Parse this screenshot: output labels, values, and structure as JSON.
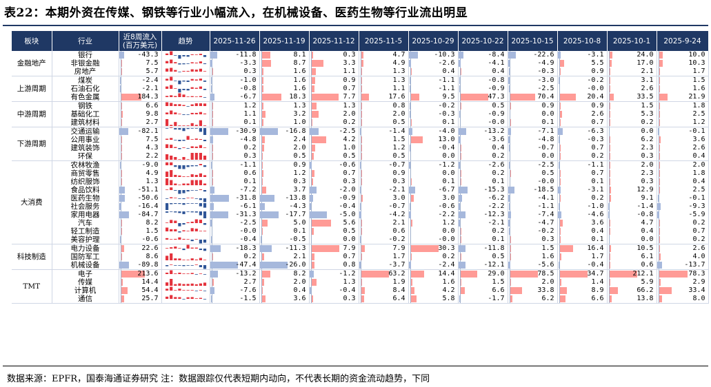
{
  "title": "表22：本期外资在传媒、钢铁等行业小幅流入，在机械设备、医药生物等行业流出明显",
  "headers": {
    "sector": "板块",
    "industry": "行业",
    "cumulative_line1": "近8周流入",
    "cumulative_line2": "(百万美元)",
    "trend": "趋势",
    "weeks": [
      "2025-11-26",
      "2025-11-19",
      "2025-11-12",
      "2025-11-5",
      "2025-10-29",
      "2025-10-22",
      "2025-10-15",
      "2025-10-8",
      "2025-10-1",
      "2025-9-24"
    ]
  },
  "colors": {
    "header_bg": "#1f3864",
    "positive": "#ff9b96",
    "negative": "#a6b8dc",
    "trend_pos": "#e4323c",
    "trend_neg": "#2f5597"
  },
  "groups": [
    {
      "name": "金融地产",
      "rows": [
        {
          "industry": "银行",
          "cum": "-43.3",
          "weeks": [
            "-11.8",
            "8.1",
            "0.3",
            "4.7",
            "-10.3",
            "-8.4",
            "-22.6",
            "-3.1",
            "24.0",
            "10.0"
          ]
        },
        {
          "industry": "非银金融",
          "cum": "7.5",
          "weeks": [
            "-3.3",
            "8.7",
            "3.3",
            "4.9",
            "-2.6",
            "-4.1",
            "-4.9",
            "5.5",
            "17.0",
            "10.3"
          ]
        },
        {
          "industry": "房地产",
          "cum": "5.7",
          "weeks": [
            "0.3",
            "1.6",
            "1.1",
            "1.3",
            "0.4",
            "0.4",
            "-0.3",
            "0.9",
            "2.1",
            "1.7"
          ]
        }
      ]
    },
    {
      "name": "上游周期",
      "rows": [
        {
          "industry": "煤炭",
          "cum": "-2.4",
          "weeks": [
            "-1.0",
            "1.6",
            "0.9",
            "1.3",
            "-1.1",
            "-0.8",
            "-3.0",
            "-0.2",
            "3.1",
            "1.5"
          ]
        },
        {
          "industry": "石油石化",
          "cum": "-2.1",
          "weeks": [
            "-0.8",
            "1.6",
            "0.7",
            "1.1",
            "-1.1",
            "-0.9",
            "-2.5",
            "-0.0",
            "2.6",
            "1.6"
          ]
        },
        {
          "industry": "有色金属",
          "cum": "184.3",
          "weeks": [
            "-6.7",
            "18.3",
            "7.7",
            "17.6",
            "9.5",
            "47.3",
            "70.4",
            "20.4",
            "33.5",
            "21.9"
          ]
        }
      ]
    },
    {
      "name": "中游周期",
      "rows": [
        {
          "industry": "钢铁",
          "cum": "6.6",
          "weeks": [
            "1.2",
            "1.3",
            "1.3",
            "0.8",
            "-0.2",
            "0.5",
            "0.9",
            "0.9",
            "1.5",
            "1.8"
          ]
        },
        {
          "industry": "基础化工",
          "cum": "9.8",
          "weeks": [
            "1.1",
            "3.2",
            "2.0",
            "2.0",
            "-0.3",
            "-0.9",
            "0.0",
            "2.6",
            "5.3",
            "2.5"
          ]
        },
        {
          "industry": "建筑材料",
          "cum": "2.7",
          "weeks": [
            "0.1",
            "1.0",
            "0.2",
            "0.5",
            "0.1",
            "-0.0",
            "0.1",
            "0.7",
            "0.2",
            "1.2"
          ]
        }
      ]
    },
    {
      "name": "下游周期",
      "rows": [
        {
          "industry": "交通运输",
          "cum": "-82.1",
          "weeks": [
            "-30.9",
            "-16.8",
            "-2.5",
            "-1.4",
            "-4.0",
            "-13.2",
            "-7.1",
            "-6.3",
            "0.0",
            "-0.1"
          ]
        },
        {
          "industry": "公用事业",
          "cum": "7.5",
          "weeks": [
            "-4.8",
            "2.4",
            "4.2",
            "1.5",
            "13.0",
            "-3.6",
            "-4.8",
            "-0.3",
            "6.2",
            "3.6"
          ]
        },
        {
          "industry": "建筑装饰",
          "cum": "4.3",
          "weeks": [
            "0.2",
            "2.0",
            "1.0",
            "1.2",
            "-0.4",
            "0.4",
            "-0.7",
            "0.7",
            "2.3",
            "2.6"
          ]
        },
        {
          "industry": "环保",
          "cum": "2.2",
          "weeks": [
            "0.3",
            "0.5",
            "0.5",
            "0.5",
            "0.0",
            "0.2",
            "0.0",
            "0.2",
            "0.3",
            "0.4"
          ]
        }
      ]
    },
    {
      "name": "大消费",
      "rows": [
        {
          "industry": "农林牧渔",
          "cum": "-9.0",
          "weeks": [
            "-1.1",
            "0.9",
            "-0.6",
            "-0.7",
            "-1.2",
            "-2.6",
            "-2.5",
            "-1.1",
            "2.0",
            "2.0"
          ]
        },
        {
          "industry": "商贸零售",
          "cum": "4.9",
          "weeks": [
            "0.6",
            "1.2",
            "0.7",
            "0.9",
            "0.0",
            "0.2",
            "0.5",
            "0.7",
            "2.3",
            "1.8"
          ]
        },
        {
          "industry": "纺织服饰",
          "cum": "1.3",
          "weeks": [
            "0.1",
            "0.3",
            "0.3",
            "0.3",
            "0.1",
            "0.1",
            "-0.0",
            "0.1",
            "0.3",
            "0.4"
          ]
        },
        {
          "industry": "食品饮料",
          "cum": "-51.1",
          "weeks": [
            "-7.2",
            "3.7",
            "-2.0",
            "-2.1",
            "-6.7",
            "-15.3",
            "-18.5",
            "-3.1",
            "12.9",
            "2.5"
          ]
        },
        {
          "industry": "医药生物",
          "cum": "-50.6",
          "weeks": [
            "-31.8",
            "-13.8",
            "-0.9",
            "3.0",
            "3.0",
            "-6.2",
            "-4.1",
            "0.2",
            "9.1",
            "-0.1"
          ]
        },
        {
          "industry": "社会服务",
          "cum": "-16.4",
          "weeks": [
            "-6.1",
            "-4.3",
            "-0.4",
            "-0.7",
            "-0.6",
            "-2.2",
            "-1.1",
            "-1.0",
            "-1.4",
            "-9.3"
          ]
        },
        {
          "industry": "家用电器",
          "cum": "-84.7",
          "weeks": [
            "-31.3",
            "-17.7",
            "-5.0",
            "-4.2",
            "-2.2",
            "-12.3",
            "-7.4",
            "-4.6",
            "-0.8",
            "-5.9"
          ]
        },
        {
          "industry": "汽车",
          "cum": "8.2",
          "weeks": [
            "-2.5",
            "5.0",
            "5.6",
            "2.1",
            "1.2",
            "-2.1",
            "-4.7",
            "3.6",
            "4.7",
            "0.2"
          ]
        },
        {
          "industry": "轻工制造",
          "cum": "1.5",
          "weeks": [
            "-0.0",
            "0.1",
            "0.5",
            "0.6",
            "0.0",
            "0.2",
            "-0.2",
            "0.4",
            "0.4",
            "0.7"
          ]
        },
        {
          "industry": "美容护理",
          "cum": "-0.6",
          "weeks": [
            "-0.4",
            "-0.5",
            "0.0",
            "-0.2",
            "-0.0",
            "0.1",
            "0.3",
            "0.1",
            "0.0",
            "0.2"
          ]
        }
      ]
    },
    {
      "name": "科技制造",
      "rows": [
        {
          "industry": "电力设备",
          "cum": "22.6",
          "weeks": [
            "-18.3",
            "-11.3",
            "7.9",
            "7.9",
            "30.3",
            "-11.8",
            "1.5",
            "16.4",
            "10.5",
            "2.6"
          ]
        },
        {
          "industry": "国防军工",
          "cum": "8.6",
          "weeks": [
            "0.2",
            "2.1",
            "0.7",
            "1.7",
            "0.2",
            "0.5",
            "1.6",
            "1.7",
            "6.1",
            "4.0"
          ]
        },
        {
          "industry": "机械设备",
          "cum": "-89.8",
          "weeks": [
            "-47.4",
            "-26.0",
            "0.8",
            "-3.7",
            "-2.4",
            "-12.1",
            "-5.6",
            "-0.4",
            "0.6",
            "-13.7"
          ]
        }
      ]
    },
    {
      "name": "TMT",
      "rows": [
        {
          "industry": "电子",
          "cum": "213.6",
          "weeks": [
            "-13.2",
            "8.2",
            "-1.2",
            "63.2",
            "14.4",
            "29.0",
            "78.5",
            "34.7",
            "212.1",
            "78.3"
          ]
        },
        {
          "industry": "传媒",
          "cum": "14.4",
          "weeks": [
            "2.7",
            "2.0",
            "1.3",
            "1.9",
            "1.6",
            "1.5",
            "2.0",
            "1.4",
            "5.9",
            "2.9"
          ]
        },
        {
          "industry": "计算机",
          "cum": "54.4",
          "weeks": [
            "-7.6",
            "0.4",
            "-0.4",
            "8.4",
            "4.2",
            "6.6",
            "33.8",
            "8.9",
            "66.2",
            "33.4"
          ]
        },
        {
          "industry": "通信",
          "cum": "25.7",
          "weeks": [
            "-1.5",
            "3.6",
            "0.3",
            "6.4",
            "5.8",
            "-1.7",
            "6.2",
            "6.6",
            "13.8",
            "8.0"
          ]
        }
      ]
    }
  ],
  "footer": "数据来源：EPFR，国泰海通证券研究    注：数据跟踪仅代表短期内动向，不代表长期的资金流动趋势，下同"
}
